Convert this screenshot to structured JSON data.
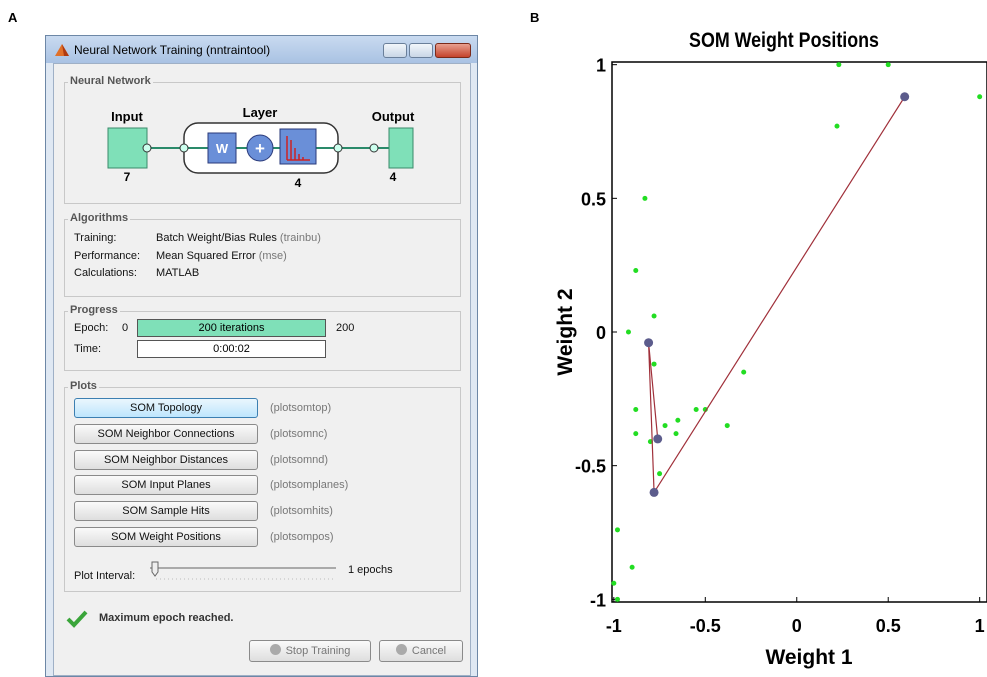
{
  "panel_labels": [
    "A",
    "B"
  ],
  "window": {
    "title": "Neural Network Training (nntraintool)",
    "network": {
      "heading": "Neural Network",
      "input_label": "Input",
      "input_size": "7",
      "layer_label": "Layer",
      "layer_size": "4",
      "output_label": "Output",
      "output_size": "4",
      "weight_symbol": "W",
      "sum_symbol": "+"
    },
    "algorithms": {
      "heading": "Algorithms",
      "rows": [
        [
          "Training:",
          "Batch Weight/Bias Rules",
          "(trainbu)"
        ],
        [
          "Performance:",
          "Mean Squared Error",
          "(mse)"
        ],
        [
          "Calculations:",
          "MATLAB"
        ]
      ]
    },
    "progress": {
      "heading": "Progress",
      "epoch_label": "Epoch:",
      "epoch_start": "0",
      "epoch_bar": "200 iterations",
      "epoch_end": "200",
      "time_label": "Time:",
      "time_value": "0:00:02"
    },
    "plots": {
      "heading": "Plots",
      "buttons": [
        {
          "label": "SOM Topology",
          "function": "(plotsomtop)"
        },
        {
          "label": "SOM Neighbor Connections",
          "function": "(plotsomnc)"
        },
        {
          "label": "SOM Neighbor Distances",
          "function": "(plotsomnd)"
        },
        {
          "label": "SOM Input Planes",
          "function": "(plotsomplanes)"
        },
        {
          "label": "SOM Sample Hits",
          "function": "(plotsomhits)"
        },
        {
          "label": "SOM Weight Positions",
          "function": "(plotsompos)"
        }
      ],
      "interval_label": "Plot Interval:",
      "interval_value": "1 epochs"
    },
    "status": "Maximum epoch reached.",
    "stop_button": "Stop Training",
    "cancel_button": "Cancel"
  },
  "chart_data": {
    "type": "scatter",
    "title": "SOM Weight Positions",
    "xlabel": "Weight 1",
    "ylabel": "Weight 2",
    "xlim": [
      -1.01,
      1.04
    ],
    "ylim": [
      -1.01,
      1.01
    ],
    "xticks": [
      -1,
      -0.5,
      0,
      0.5,
      1
    ],
    "yticks": [
      -1,
      -0.5,
      0,
      0.5,
      1
    ],
    "grid": false,
    "series": [
      {
        "color": "#22dd22",
        "x": [
          0.23,
          0.5,
          1.0,
          0.22,
          -0.83,
          -0.88,
          -0.78,
          -0.92,
          -0.78,
          -0.29,
          -0.88,
          -0.55,
          -0.5,
          -0.65,
          -0.72,
          -0.38,
          -0.88,
          -0.66,
          -0.8,
          -0.75,
          -0.98,
          -0.9,
          -1.0,
          -0.98
        ],
        "values": [
          1.0,
          1.0,
          0.88,
          0.77,
          0.5,
          0.23,
          0.06,
          0.0,
          -0.12,
          -0.15,
          -0.29,
          -0.29,
          -0.29,
          -0.33,
          -0.35,
          -0.35,
          -0.38,
          -0.38,
          -0.41,
          -0.53,
          -0.74,
          -0.88,
          -0.94,
          -1.0
        ]
      },
      {
        "color": "#5c5c8c",
        "line": true,
        "line_color": "#a0303a",
        "x": [
          0.59,
          -0.78,
          -0.81,
          -0.76
        ],
        "values": [
          0.88,
          -0.6,
          -0.04,
          -0.4
        ]
      }
    ]
  }
}
